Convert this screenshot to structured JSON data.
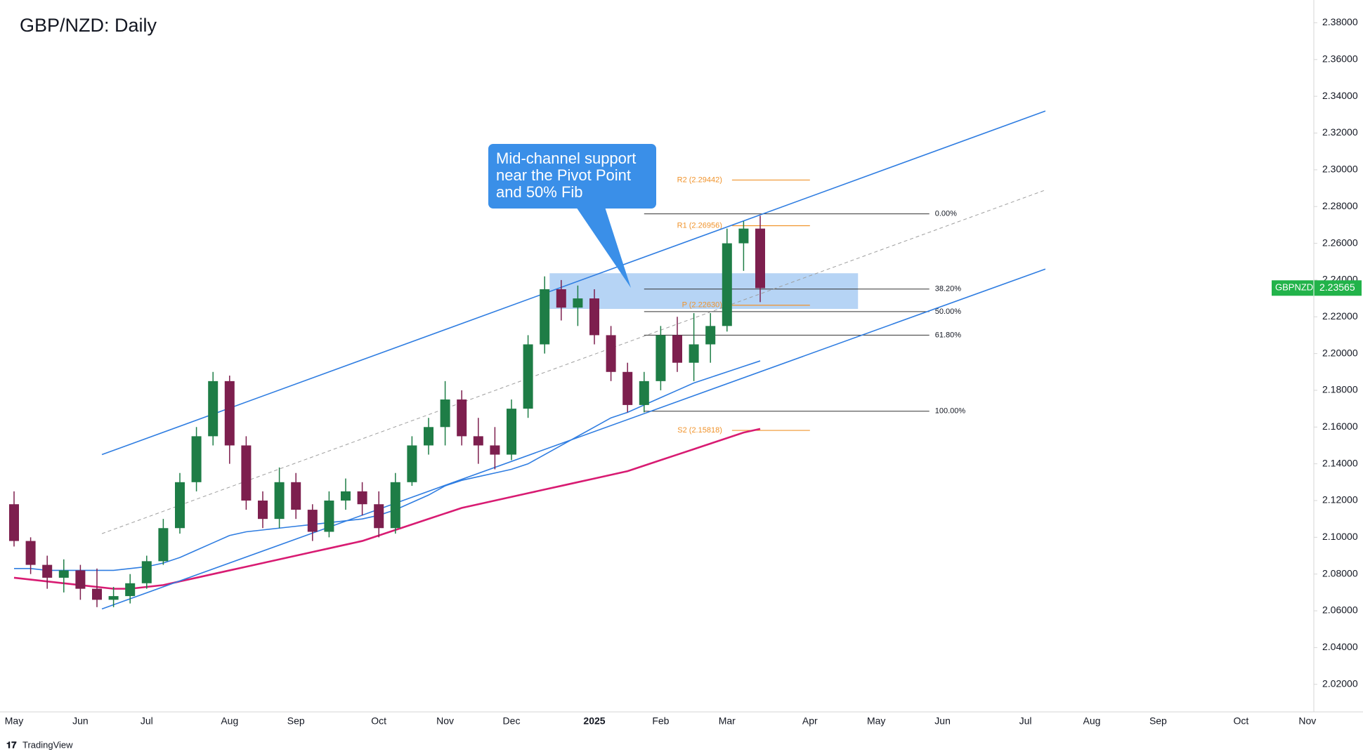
{
  "chart_data": {
    "type": "candlestick",
    "title": "GBP/NZD: Daily",
    "categories": [
      "May",
      null,
      null,
      null,
      "Jun",
      null,
      null,
      null,
      "Jul",
      null,
      null,
      null,
      null,
      "Aug",
      null,
      null,
      null,
      "Sep",
      null,
      null,
      null,
      null,
      "Oct",
      null,
      null,
      null,
      "Nov",
      null,
      null,
      null,
      "Dec",
      null,
      null,
      null,
      null,
      "2025",
      null,
      null,
      null,
      "Feb",
      null,
      null,
      null,
      "Mar",
      null,
      null,
      null,
      null,
      "Apr",
      null,
      null,
      null,
      "May",
      null,
      null,
      null,
      "Jun",
      null,
      null,
      null,
      null,
      "Jul",
      null,
      null,
      null,
      "Aug",
      null,
      null,
      null,
      "Sep",
      null,
      null,
      null,
      null,
      "Oct",
      null,
      null,
      null,
      "Nov"
    ],
    "open": [
      2.118,
      2.098,
      2.085,
      2.078,
      2.082,
      2.072,
      2.066,
      2.068,
      2.075,
      2.087,
      2.105,
      2.13,
      2.155,
      2.185,
      2.15,
      2.12,
      2.11,
      2.13,
      2.115,
      2.103,
      2.12,
      2.125,
      2.118,
      2.105,
      2.13,
      2.15,
      2.16,
      2.175,
      2.155,
      2.15,
      2.145,
      2.17,
      2.205,
      2.235,
      2.225,
      2.23,
      2.21,
      2.19,
      2.172,
      2.185,
      2.21,
      2.195,
      2.205,
      2.215,
      2.26,
      2.268,
      null,
      null,
      null,
      null,
      null,
      null,
      null,
      null,
      null,
      null,
      null,
      null,
      null,
      null,
      null,
      null,
      null,
      null,
      null,
      null,
      null,
      null,
      null,
      null,
      null,
      null,
      null,
      null,
      null,
      null,
      null,
      null,
      null
    ],
    "high": [
      2.125,
      2.1,
      2.09,
      2.088,
      2.085,
      2.083,
      2.073,
      2.08,
      2.09,
      2.11,
      2.135,
      2.16,
      2.19,
      2.188,
      2.155,
      2.125,
      2.138,
      2.135,
      2.118,
      2.125,
      2.132,
      2.13,
      2.125,
      2.135,
      2.155,
      2.165,
      2.185,
      2.18,
      2.165,
      2.16,
      2.175,
      2.21,
      2.242,
      2.24,
      2.237,
      2.235,
      2.215,
      2.195,
      2.19,
      2.215,
      2.22,
      2.222,
      2.222,
      2.268,
      2.272,
      2.275,
      null,
      null,
      null,
      null,
      null,
      null,
      null,
      null,
      null,
      null,
      null,
      null,
      null,
      null,
      null,
      null,
      null,
      null,
      null,
      null,
      null,
      null,
      null,
      null,
      null,
      null,
      null,
      null,
      null,
      null,
      null,
      null,
      null
    ],
    "low": [
      2.095,
      2.08,
      2.072,
      2.07,
      2.066,
      2.062,
      2.062,
      2.064,
      2.072,
      2.085,
      2.102,
      2.125,
      2.15,
      2.14,
      2.115,
      2.105,
      2.105,
      2.11,
      2.098,
      2.1,
      2.115,
      2.112,
      2.1,
      2.102,
      2.128,
      2.145,
      2.15,
      2.15,
      2.14,
      2.137,
      2.142,
      2.165,
      2.2,
      2.218,
      2.215,
      2.205,
      2.185,
      2.168,
      2.168,
      2.18,
      2.19,
      2.185,
      2.195,
      2.212,
      2.245,
      2.228,
      null,
      null,
      null,
      null,
      null,
      null,
      null,
      null,
      null,
      null,
      null,
      null,
      null,
      null,
      null,
      null,
      null,
      null,
      null,
      null,
      null,
      null,
      null,
      null,
      null,
      null,
      null,
      null,
      null,
      null,
      null,
      null,
      null
    ],
    "close": [
      2.098,
      2.085,
      2.078,
      2.082,
      2.072,
      2.066,
      2.068,
      2.075,
      2.087,
      2.105,
      2.13,
      2.155,
      2.185,
      2.15,
      2.12,
      2.11,
      2.13,
      2.115,
      2.103,
      2.12,
      2.125,
      2.118,
      2.105,
      2.13,
      2.15,
      2.16,
      2.175,
      2.155,
      2.15,
      2.145,
      2.17,
      2.205,
      2.235,
      2.225,
      2.23,
      2.21,
      2.19,
      2.172,
      2.185,
      2.21,
      2.195,
      2.205,
      2.215,
      2.26,
      2.268,
      2.2356,
      null,
      null,
      null,
      null,
      null,
      null,
      null,
      null,
      null,
      null,
      null,
      null,
      null,
      null,
      null,
      null,
      null,
      null,
      null,
      null,
      null,
      null,
      null,
      null,
      null,
      null,
      null,
      null,
      null,
      null,
      null,
      null,
      null
    ],
    "up_color": "#1e7d46",
    "down_color": "#7d1f4e",
    "moving_averages": [
      {
        "color": "#2f7de1",
        "values": [
          2.083,
          2.083,
          2.082,
          2.082,
          2.082,
          2.082,
          2.082,
          2.083,
          2.084,
          2.086,
          2.089,
          2.093,
          2.097,
          2.101,
          2.103,
          2.104,
          2.105,
          2.106,
          2.107,
          2.108,
          2.109,
          2.11,
          2.112,
          2.115,
          2.119,
          2.123,
          2.128,
          2.131,
          2.133,
          2.135,
          2.137,
          2.14,
          2.145,
          2.15,
          2.155,
          2.16,
          2.165,
          2.168,
          2.172,
          2.176,
          2.18,
          2.184,
          2.187,
          2.19,
          2.193,
          2.196,
          null,
          null,
          null,
          null,
          null,
          null,
          null,
          null,
          null,
          null,
          null,
          null,
          null,
          null,
          null,
          null,
          null,
          null,
          null,
          null,
          null,
          null,
          null,
          null,
          null,
          null,
          null,
          null,
          null,
          null,
          null,
          null,
          null
        ]
      },
      {
        "color": "#d81b72",
        "values": [
          2.078,
          2.077,
          2.076,
          2.075,
          2.074,
          2.073,
          2.072,
          2.072,
          2.073,
          2.074,
          2.076,
          2.078,
          2.08,
          2.082,
          2.084,
          2.086,
          2.088,
          2.09,
          2.092,
          2.094,
          2.096,
          2.098,
          2.101,
          2.104,
          2.107,
          2.11,
          2.113,
          2.116,
          2.118,
          2.12,
          2.122,
          2.124,
          2.126,
          2.128,
          2.13,
          2.132,
          2.134,
          2.136,
          2.139,
          2.142,
          2.145,
          2.148,
          2.151,
          2.154,
          2.157,
          2.159,
          null,
          null,
          null,
          null,
          null,
          null,
          null,
          null,
          null,
          null,
          null,
          null,
          null,
          null,
          null,
          null,
          null,
          null,
          null,
          null,
          null,
          null,
          null,
          null,
          null,
          null,
          null,
          null,
          null,
          null,
          null,
          null,
          null
        ]
      }
    ],
    "trendlines": [
      {
        "color": "#2f7de1",
        "x": [
          5.3,
          62.2
        ],
        "y": [
          2.145,
          2.332
        ]
      },
      {
        "color": "#2f7de1",
        "x": [
          5.3,
          62.2
        ],
        "y": [
          2.061,
          2.246
        ]
      },
      {
        "color": "#9e9e9e",
        "dashed": true,
        "x": [
          5.3,
          62.2
        ],
        "y": [
          2.102,
          2.289
        ]
      }
    ],
    "zone": {
      "color": "#a9cdf3",
      "x": [
        32.3,
        50.9
      ],
      "y": [
        2.2243,
        2.2437
      ]
    },
    "fibonacci": {
      "x": [
        38,
        55.2
      ],
      "levels": [
        {
          "label": "0.00%",
          "value": 2.276
        },
        {
          "label": "38.20%",
          "value": 2.2351
        },
        {
          "label": "50.00%",
          "value": 2.2228
        },
        {
          "label": "61.80%",
          "value": 2.21
        },
        {
          "label": "100.00%",
          "value": 2.1686
        }
      ]
    },
    "pivots": {
      "color": "#f0932b",
      "x": [
        43.3,
        48
      ],
      "levels": [
        {
          "label": "R2 (2.29442)",
          "value": 2.29442
        },
        {
          "label": "R1 (2.26956)",
          "value": 2.26956
        },
        {
          "label": "P (2.22630)",
          "value": 2.2263
        },
        {
          "label": "S2 (2.15818)",
          "value": 2.15818
        }
      ]
    },
    "annotation": [
      "Mid-channel support",
      "near the Pivot Point",
      "and 50% Fib"
    ],
    "symbol": "GBPNZD",
    "last_price": 2.23565,
    "last_price_color": "#22b34a",
    "ylim": [
      2.005,
      2.3924
    ],
    "yticks": [
      {
        "value": 2.02,
        "label": "2.02000"
      },
      {
        "value": 2.04,
        "label": "2.04000"
      },
      {
        "value": 2.06,
        "label": "2.06000"
      },
      {
        "value": 2.08,
        "label": "2.08000"
      },
      {
        "value": 2.1,
        "label": "2.10000"
      },
      {
        "value": 2.12,
        "label": "2.12000"
      },
      {
        "value": 2.14,
        "label": "2.14000"
      },
      {
        "value": 2.16,
        "label": "2.16000"
      },
      {
        "value": 2.18,
        "label": "2.18000"
      },
      {
        "value": 2.2,
        "label": "2.20000"
      },
      {
        "value": 2.22,
        "label": "2.22000"
      },
      {
        "value": 2.24,
        "label": "2.24000"
      },
      {
        "value": 2.26,
        "label": "2.26000"
      },
      {
        "value": 2.28,
        "label": "2.28000"
      },
      {
        "value": 2.3,
        "label": "2.30000"
      },
      {
        "value": 2.32,
        "label": "2.32000"
      },
      {
        "value": 2.34,
        "label": "2.34000"
      },
      {
        "value": 2.36,
        "label": "2.36000"
      },
      {
        "value": 2.38,
        "label": "2.38000"
      }
    ],
    "grid": false
  },
  "footer": "TradingView"
}
